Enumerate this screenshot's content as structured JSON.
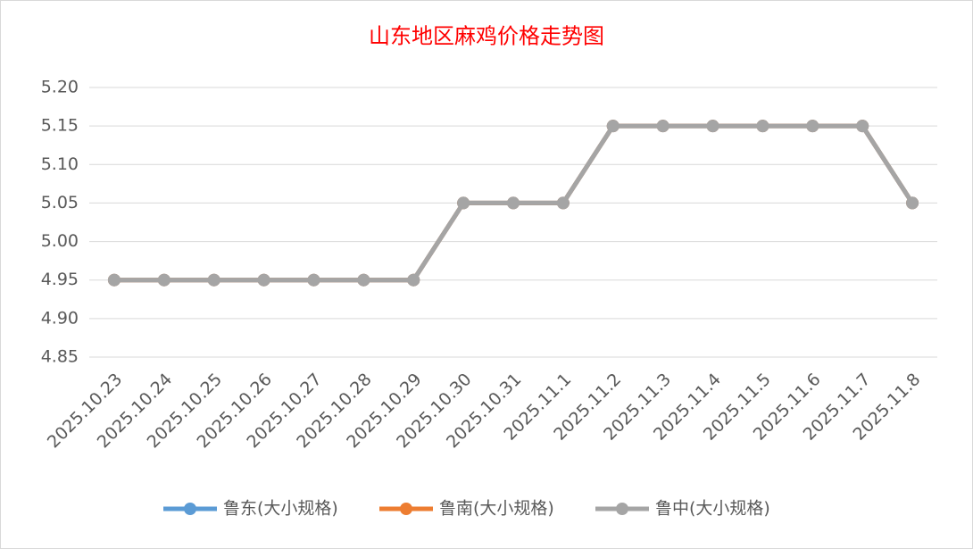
{
  "chart_data": {
    "type": "line",
    "title": "山东地区麻鸡价格走势图",
    "categories": [
      "2025.10.23",
      "2025.10.24",
      "2025.10.25",
      "2025.10.26",
      "2025.10.27",
      "2025.10.28",
      "2025.10.29",
      "2025.10.30",
      "2025.10.31",
      "2025.11.1",
      "2025.11.2",
      "2025.11.3",
      "2025.11.4",
      "2025.11.5",
      "2025.11.6",
      "2025.11.7",
      "2025.11.8"
    ],
    "series": [
      {
        "name": "鲁东(大小规格)",
        "color": "#5b9bd5",
        "values": [
          4.95,
          4.95,
          4.95,
          4.95,
          4.95,
          4.95,
          4.95,
          5.05,
          5.05,
          5.05,
          5.15,
          5.15,
          5.15,
          5.15,
          5.15,
          5.15,
          5.05
        ]
      },
      {
        "name": "鲁南(大小规格)",
        "color": "#ed7d31",
        "values": [
          4.95,
          4.95,
          4.95,
          4.95,
          4.95,
          4.95,
          4.95,
          5.05,
          5.05,
          5.05,
          5.15,
          5.15,
          5.15,
          5.15,
          5.15,
          5.15,
          5.05
        ]
      },
      {
        "name": "鲁中(大小规格)",
        "color": "#a5a5a5",
        "values": [
          4.95,
          4.95,
          4.95,
          4.95,
          4.95,
          4.95,
          4.95,
          5.05,
          5.05,
          5.05,
          5.15,
          5.15,
          5.15,
          5.15,
          5.15,
          5.15,
          5.05
        ]
      }
    ],
    "ylim": [
      4.85,
      5.2
    ],
    "yticks": [
      4.85,
      {
        "value": 4.9,
        "label": "4.90"
      },
      4.95,
      {
        "value": 5.0,
        "label": "5.00"
      },
      5.05,
      {
        "value": 5.1,
        "label": "5.10"
      },
      5.15,
      {
        "value": 5.2,
        "label": "5.20"
      }
    ],
    "grid": true
  }
}
